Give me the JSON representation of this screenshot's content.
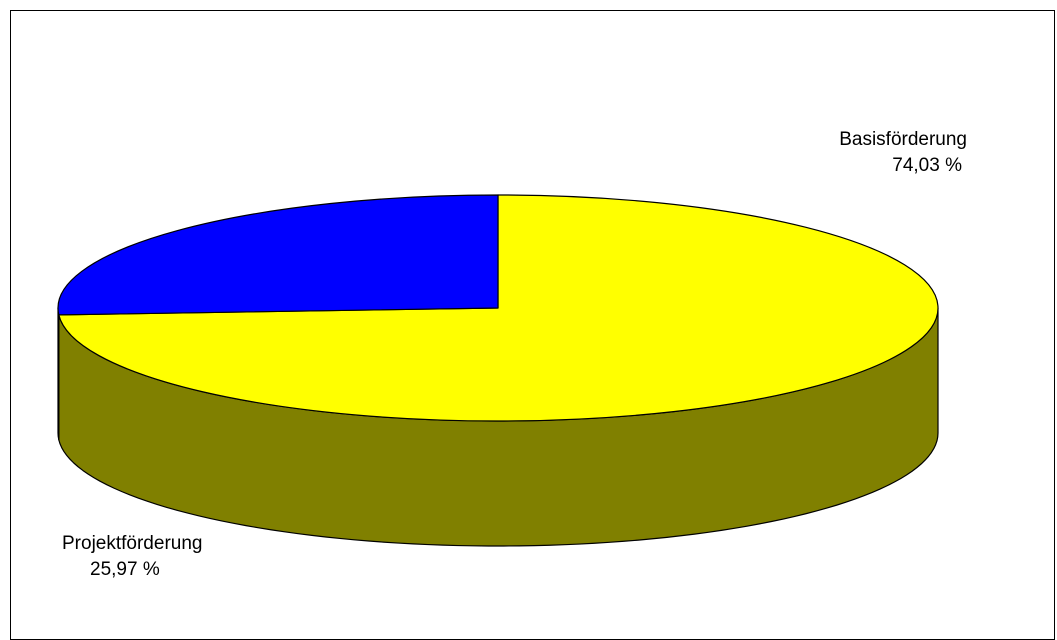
{
  "chart_data": {
    "type": "pie",
    "title": "",
    "style": "3d-tilted",
    "start_angle_deg": 90,
    "direction": "clockwise",
    "slices": [
      {
        "name": "Basisförderung",
        "value": 74.03,
        "value_label": "74,03 %",
        "top_color": "#ffff00",
        "side_color": "#808000"
      },
      {
        "name": "Projektförderung",
        "value": 25.97,
        "value_label": "25,97 %",
        "top_color": "#0000ff",
        "side_color": "#000080"
      }
    ],
    "legend": "none"
  }
}
